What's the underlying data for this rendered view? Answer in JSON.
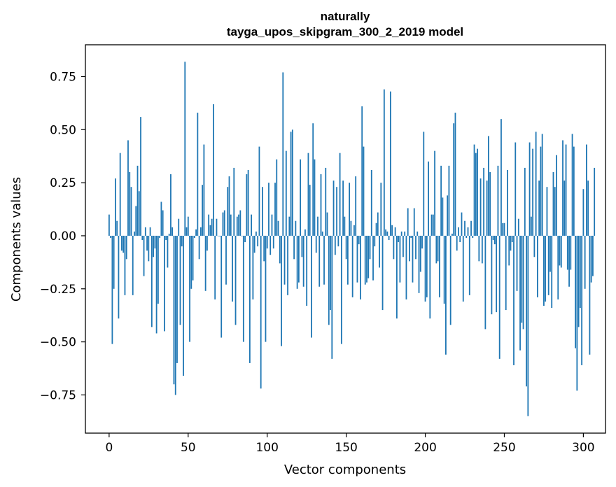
{
  "chart_data": {
    "type": "bar",
    "title": "naturally",
    "subtitle": "tayga_upos_skipgram_300_2_2019 model",
    "xlabel": "Vector components",
    "ylabel": "Components values",
    "xlim": [
      -15,
      314
    ],
    "ylim": [
      -0.93,
      0.9
    ],
    "xticks": [
      0,
      50,
      100,
      150,
      200,
      250,
      300
    ],
    "xtick_labels": [
      "0",
      "50",
      "100",
      "150",
      "200",
      "250",
      "300"
    ],
    "yticks": [
      -0.75,
      -0.5,
      -0.25,
      0.0,
      0.25,
      0.5,
      0.75
    ],
    "ytick_labels": [
      "−0.75",
      "−0.50",
      "−0.25",
      "0.00",
      "0.25",
      "0.50",
      "0.75"
    ],
    "grid": false,
    "bar_color": "#1f77b4",
    "values": [
      0.1,
      -0.01,
      -0.51,
      -0.25,
      0.27,
      0.07,
      -0.39,
      0.39,
      -0.07,
      -0.08,
      -0.28,
      -0.11,
      0.45,
      0.3,
      0.23,
      -0.28,
      0.02,
      0.14,
      0.33,
      0.21,
      0.56,
      -0.02,
      -0.19,
      0.04,
      -0.07,
      -0.12,
      0.04,
      -0.43,
      -0.1,
      -0.06,
      -0.46,
      -0.32,
      -0.01,
      0.16,
      0.12,
      -0.45,
      -0.02,
      -0.15,
      0.01,
      0.29,
      0.04,
      -0.7,
      -0.75,
      -0.6,
      0.08,
      -0.42,
      -0.05,
      -0.66,
      0.82,
      0.04,
      0.09,
      -0.5,
      -0.25,
      -0.21,
      -0.01,
      0.03,
      0.58,
      -0.11,
      0.04,
      0.24,
      0.43,
      -0.26,
      -0.07,
      0.1,
      0.05,
      0.08,
      0.62,
      -0.3,
      0.08,
      0.0,
      0.0,
      -0.48,
      0.11,
      0.12,
      -0.23,
      0.23,
      0.28,
      0.1,
      -0.31,
      0.32,
      -0.42,
      0.09,
      0.1,
      0.12,
      0.0,
      -0.5,
      -0.03,
      0.29,
      0.31,
      -0.6,
      0.1,
      -0.3,
      -0.08,
      0.02,
      -0.05,
      0.42,
      -0.72,
      0.23,
      -0.12,
      -0.5,
      -0.06,
      0.25,
      -0.09,
      0.1,
      -0.06,
      0.25,
      0.36,
      0.07,
      -0.13,
      -0.52,
      0.77,
      -0.23,
      0.4,
      -0.28,
      0.09,
      0.49,
      0.5,
      -0.11,
      0.07,
      -0.25,
      -0.22,
      0.36,
      -0.1,
      -0.24,
      0.03,
      -0.33,
      0.39,
      0.24,
      -0.48,
      0.53,
      0.36,
      -0.08,
      0.09,
      -0.24,
      0.29,
      0.02,
      -0.23,
      0.32,
      0.11,
      -0.42,
      -0.35,
      -0.58,
      0.26,
      -0.09,
      0.23,
      -0.05,
      0.39,
      -0.51,
      0.26,
      0.09,
      -0.11,
      -0.23,
      0.25,
      0.07,
      -0.29,
      0.05,
      0.28,
      -0.22,
      -0.04,
      -0.3,
      0.61,
      0.42,
      -0.23,
      -0.22,
      -0.2,
      -0.11,
      0.31,
      -0.21,
      -0.05,
      0.06,
      0.11,
      -0.15,
      0.25,
      -0.35,
      0.69,
      0.03,
      0.02,
      -0.02,
      0.68,
      0.05,
      -0.11,
      0.04,
      -0.39,
      -0.03,
      -0.22,
      0.02,
      -0.1,
      0.02,
      -0.3,
      0.13,
      -0.12,
      -0.01,
      -0.22,
      0.13,
      -0.11,
      0.02,
      -0.27,
      -0.17,
      -0.06,
      0.49,
      -0.31,
      -0.29,
      0.35,
      -0.39,
      0.1,
      0.1,
      0.4,
      -0.13,
      -0.12,
      -0.29,
      0.33,
      0.18,
      -0.32,
      -0.56,
      0.19,
      0.33,
      -0.42,
      0.01,
      0.53,
      0.58,
      -0.07,
      0.04,
      -0.03,
      0.11,
      -0.31,
      0.07,
      -0.01,
      0.04,
      -0.28,
      0.07,
      -0.01,
      0.43,
      0.39,
      0.41,
      -0.12,
      0.27,
      -0.13,
      0.32,
      -0.44,
      0.26,
      0.47,
      0.3,
      -0.37,
      -0.02,
      -0.04,
      -0.36,
      0.33,
      -0.58,
      0.55,
      0.06,
      0.06,
      -0.35,
      0.31,
      -0.14,
      -0.07,
      -0.03,
      -0.61,
      0.44,
      -0.26,
      0.08,
      -0.54,
      -0.41,
      -0.44,
      0.32,
      -0.71,
      -0.85,
      0.44,
      0.09,
      0.41,
      -0.1,
      0.49,
      -0.29,
      0.26,
      0.42,
      0.48,
      -0.33,
      -0.31,
      0.23,
      -0.28,
      -0.17,
      -0.34,
      0.3,
      0.23,
      0.38,
      -0.3,
      -0.14,
      -0.15,
      0.45,
      0.26,
      0.43,
      -0.16,
      -0.24,
      -0.16,
      0.48,
      0.42,
      -0.53,
      -0.73,
      -0.43,
      -0.34,
      -0.61,
      0.22,
      -0.25,
      0.43,
      0.26,
      -0.56,
      -0.22,
      -0.19,
      0.32
    ]
  }
}
